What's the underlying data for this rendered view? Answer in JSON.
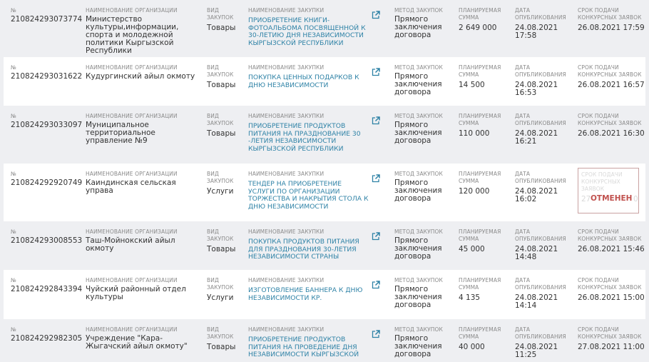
{
  "labels": {
    "number": "№",
    "organization": "Наименование организации",
    "type": "Вид закупок",
    "title": "Наименование закупки",
    "method": "Метод закупок",
    "sum": "Планируемая сумма",
    "published": "Дата опубликования",
    "deadline": "Срок подачи конкурсных заявок"
  },
  "colors": {
    "link": "#2e82a6",
    "cancelled": "#c0504d",
    "row_alt": "#eeeff2"
  },
  "icons": {
    "open": "external-link-icon"
  },
  "rows": [
    {
      "number": "210824293073774",
      "organization": "Министерство культуры,информации, спорта и молодежной политики Кыргызской Республики",
      "type": "Товары",
      "title": "Приобретение книги-фотоальбома посвященной к 30-летию Дня независимости Кыргызской Республики",
      "method": "Прямого заключения договора",
      "sum": "2 649 000",
      "published": "24.08.2021 17:58",
      "deadline": "26.08.2021 17:59"
    },
    {
      "number": "210824293031622",
      "organization": "Кудургинский айыл окмоту",
      "type": "Товары",
      "title": "Покупка ценных подарков к Дню Независимости",
      "method": "Прямого заключения договора",
      "sum": "14 500",
      "published": "24.08.2021 16:53",
      "deadline": "26.08.2021 16:57"
    },
    {
      "number": "210824293033097",
      "organization": "Муниципальное территориальное управление №9",
      "type": "Товары",
      "title": "Приобретение продуктов питания на празднование 30 -летия Независимости Кыргызской Республики",
      "method": "Прямого заключения договора",
      "sum": "110 000",
      "published": "24.08.2021 16:21",
      "deadline": "26.08.2021 16:30"
    },
    {
      "number": "210824292920749",
      "organization": "Каиндинская сельская управа",
      "type": "Услуги",
      "title": "Тендер на приобретение услуги по организации торжества и накрытия стола к Дню Независимости",
      "method": "Прямого заключения договора",
      "sum": "120 000",
      "published": "24.08.2021 16:02",
      "deadline_fragments": [
        "27",
        "0"
      ],
      "status": "ОТМЕНЕН"
    },
    {
      "number": "210824293008553",
      "organization": "Таш-Мойнокский айыл окмоту",
      "type": "Товары",
      "title": "Покупка продуктов питания для празднования 30-летия независимости страны",
      "method": "Прямого заключения договора",
      "sum": "45 000",
      "published": "24.08.2021 14:48",
      "deadline": "26.08.2021 15:46"
    },
    {
      "number": "210824292843394",
      "organization": "Чуйский районный отдел культуры",
      "type": "Услуги",
      "title": "Изготовление баннера к Дню независимости КР.",
      "method": "Прямого заключения договора",
      "sum": "4 135",
      "published": "24.08.2021 14:14",
      "deadline": "26.08.2021 15:00"
    },
    {
      "number": "210824292982305",
      "organization": "Учреждение \"Кара-Жыгачский айыл окмоту\"",
      "type": "Товары",
      "title": "Приобретение продуктов питания на проведение Дня Независимости Кыргызской",
      "method": "Прямого заключения договора",
      "sum": "40 000",
      "published": "24.08.2021 11:25",
      "deadline": "27.08.2021 11:00"
    }
  ]
}
